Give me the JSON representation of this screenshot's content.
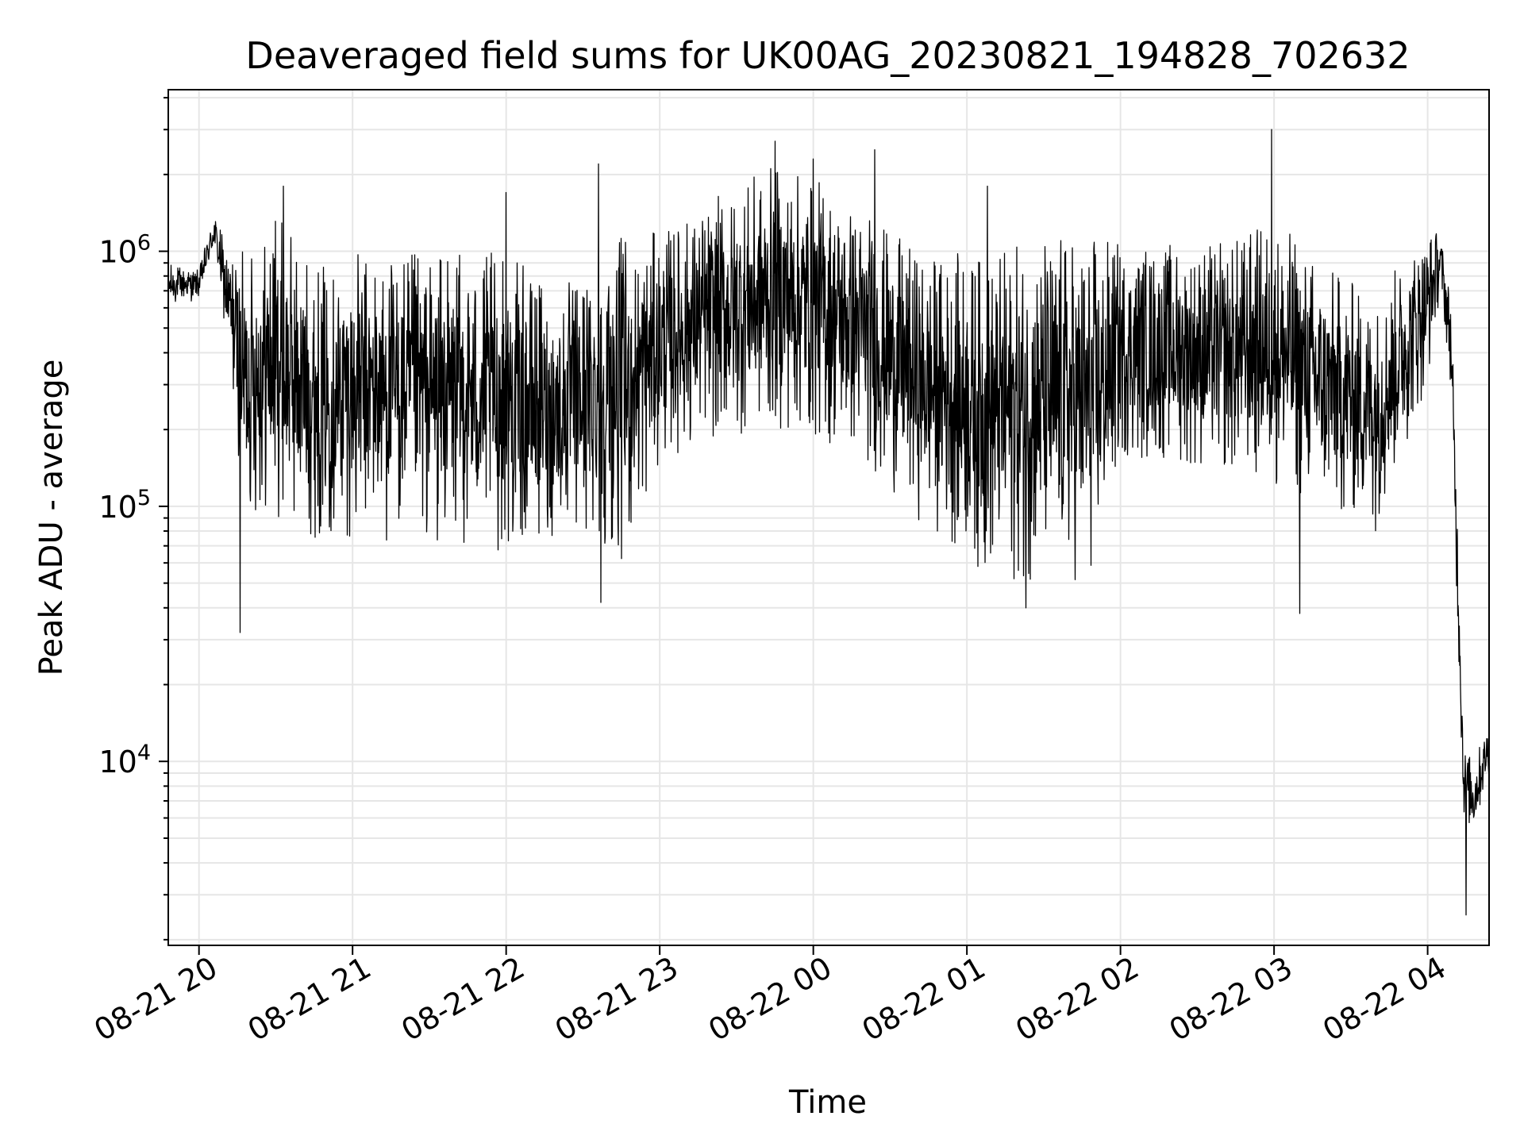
{
  "chart_data": {
    "type": "line",
    "title": "Deaveraged field sums for UK00AG_20230821_194828_702632",
    "xlabel": "Time",
    "ylabel": "Peak ADU - average",
    "yscale": "log",
    "ylim": [
      1900,
      4300000
    ],
    "xlim": [
      "2023-08-21 19:48",
      "2023-08-22 04:24"
    ],
    "grid": true,
    "line_color": "#000000",
    "grid_color": "#e6e6e6",
    "x_ticks": [
      {
        "t": "2023-08-21 20:00",
        "label": "08-21 20"
      },
      {
        "t": "2023-08-21 21:00",
        "label": "08-21 21"
      },
      {
        "t": "2023-08-21 22:00",
        "label": "08-21 22"
      },
      {
        "t": "2023-08-21 23:00",
        "label": "08-21 23"
      },
      {
        "t": "2023-08-22 00:00",
        "label": "08-22 00"
      },
      {
        "t": "2023-08-22 01:00",
        "label": "08-22 01"
      },
      {
        "t": "2023-08-22 02:00",
        "label": "08-22 02"
      },
      {
        "t": "2023-08-22 03:00",
        "label": "08-22 03"
      },
      {
        "t": "2023-08-22 04:00",
        "label": "08-22 04"
      }
    ],
    "y_ticks": [
      {
        "value": 10000,
        "base": "10",
        "exp": "4"
      },
      {
        "value": 100000,
        "base": "10",
        "exp": "5"
      },
      {
        "value": 1000000,
        "base": "10",
        "exp": "6"
      }
    ],
    "series": [
      {
        "points": [
          [
            "2023-08-21 19:48",
            600000,
            900000
          ],
          [
            "2023-08-21 20:00",
            650000,
            850000
          ],
          [
            "2023-08-21 20:06",
            1000000,
            1450000
          ],
          [
            "2023-08-21 20:10",
            500000,
            1100000
          ],
          [
            "2023-08-21 20:18",
            90000,
            1000000
          ],
          [
            "2023-08-21 20:30",
            90000,
            1500000
          ],
          [
            "2023-08-21 20:45",
            75000,
            900000
          ],
          [
            "2023-08-21 21:00",
            75000,
            1000000
          ],
          [
            "2023-08-21 21:20",
            70000,
            1000000
          ],
          [
            "2023-08-21 21:40",
            70000,
            1000000
          ],
          [
            "2023-08-21 22:00",
            65000,
            1000000
          ],
          [
            "2023-08-21 22:20",
            75000,
            700000
          ],
          [
            "2023-08-21 22:35",
            70000,
            1000000
          ],
          [
            "2023-08-21 22:48",
            60000,
            1200000
          ],
          [
            "2023-08-21 23:00",
            150000,
            1200000
          ],
          [
            "2023-08-21 23:20",
            180000,
            1600000
          ],
          [
            "2023-08-21 23:45",
            200000,
            2200000
          ],
          [
            "2023-08-22 00:00",
            180000,
            2000000
          ],
          [
            "2023-08-22 00:20",
            150000,
            1500000
          ],
          [
            "2023-08-22 00:40",
            90000,
            1000000
          ],
          [
            "2023-08-22 00:55",
            70000,
            1000000
          ],
          [
            "2023-08-22 01:10",
            50000,
            1000000
          ],
          [
            "2023-08-22 01:30",
            50000,
            1200000
          ],
          [
            "2023-08-22 01:50",
            50000,
            1200000
          ],
          [
            "2023-08-22 02:00",
            150000,
            1100000
          ],
          [
            "2023-08-22 02:20",
            150000,
            1100000
          ],
          [
            "2023-08-22 02:40",
            130000,
            1100000
          ],
          [
            "2023-08-22 03:00",
            120000,
            1400000
          ],
          [
            "2023-08-22 03:20",
            90000,
            900000
          ],
          [
            "2023-08-22 03:40",
            80000,
            700000
          ],
          [
            "2023-08-22 04:00",
            300000,
            1300000
          ],
          [
            "2023-08-22 04:05",
            700000,
            1200000
          ],
          [
            "2023-08-22 04:09",
            300000,
            700000
          ],
          [
            "2023-08-22 04:12",
            25000,
            80000
          ],
          [
            "2023-08-22 04:14",
            6000,
            12000
          ],
          [
            "2023-08-22 04:18",
            5000,
            10000
          ],
          [
            "2023-08-22 04:24",
            9000,
            15000
          ]
        ],
        "spikes": [
          [
            "2023-08-21 20:16",
            32000
          ],
          [
            "2023-08-21 20:33",
            1800000
          ],
          [
            "2023-08-21 22:00",
            1700000
          ],
          [
            "2023-08-21 22:36",
            2200000
          ],
          [
            "2023-08-21 22:37",
            42000
          ],
          [
            "2023-08-21 23:45",
            2700000
          ],
          [
            "2023-08-22 00:00",
            2300000
          ],
          [
            "2023-08-22 00:24",
            2500000
          ],
          [
            "2023-08-22 01:08",
            1800000
          ],
          [
            "2023-08-22 01:23",
            40000
          ],
          [
            "2023-08-22 02:59",
            3000000
          ],
          [
            "2023-08-22 03:10",
            38000
          ],
          [
            "2023-08-22 04:15",
            2500
          ]
        ]
      }
    ]
  }
}
